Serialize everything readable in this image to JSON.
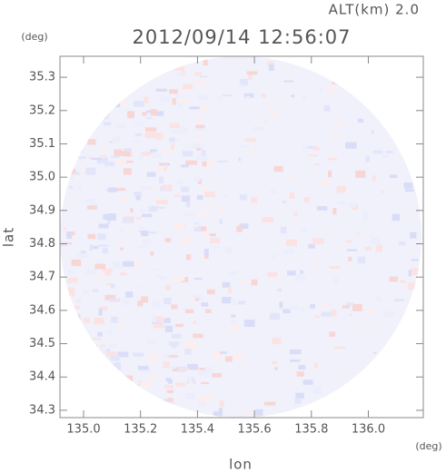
{
  "chart_data": {
    "type": "field",
    "title": "2012/09/14 12:56:07",
    "annotation": "ALT(km) 2.0",
    "x_label": "lon",
    "y_label": "lat",
    "x_unit": "(deg)",
    "y_unit": "(deg)",
    "xlim": [
      134.917,
      136.193
    ],
    "ylim": [
      34.278,
      35.363
    ],
    "xticks": [
      {
        "value": 135,
        "label": "135.0"
      },
      135.2,
      135.4,
      135.6,
      135.8,
      {
        "value": 136,
        "label": "136.0"
      }
    ],
    "yticks": [
      34.3,
      34.4,
      34.5,
      34.6,
      34.7,
      34.8,
      34.9,
      {
        "value": 35,
        "label": "35.0"
      },
      35.1,
      35.2,
      35.3
    ]
  }
}
